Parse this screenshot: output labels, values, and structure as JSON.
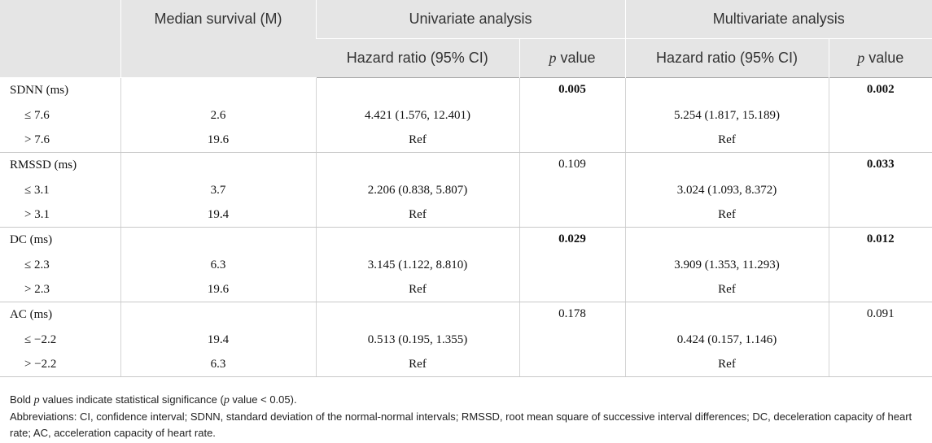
{
  "header": {
    "median_survival": "Median survival (M)",
    "univariate": "Univariate analysis",
    "multivariate": "Multivariate analysis",
    "hazard_ratio": "Hazard ratio (95% CI)",
    "p_letter": "p",
    "value_word": " value"
  },
  "groups": [
    {
      "label": "SDNN (ms)",
      "uni_p": "0.005",
      "uni_p_bold": true,
      "multi_p": "0.002",
      "multi_p_bold": true,
      "rows": [
        {
          "label": "≤ 7.6",
          "median": "2.6",
          "uni_hr": "4.421 (1.576, 12.401)",
          "multi_hr": "5.254 (1.817, 15.189)"
        },
        {
          "label": "> 7.6",
          "median": "19.6",
          "uni_hr": "Ref",
          "multi_hr": "Ref"
        }
      ]
    },
    {
      "label": "RMSSD (ms)",
      "uni_p": "0.109",
      "uni_p_bold": false,
      "multi_p": "0.033",
      "multi_p_bold": true,
      "rows": [
        {
          "label": "≤ 3.1",
          "median": "3.7",
          "uni_hr": "2.206 (0.838, 5.807)",
          "multi_hr": "3.024 (1.093, 8.372)"
        },
        {
          "label": "> 3.1",
          "median": "19.4",
          "uni_hr": "Ref",
          "multi_hr": "Ref"
        }
      ]
    },
    {
      "label": "DC (ms)",
      "uni_p": "0.029",
      "uni_p_bold": true,
      "multi_p": "0.012",
      "multi_p_bold": true,
      "rows": [
        {
          "label": "≤ 2.3",
          "median": "6.3",
          "uni_hr": "3.145 (1.122, 8.810)",
          "multi_hr": "3.909 (1.353, 11.293)"
        },
        {
          "label": "> 2.3",
          "median": "19.6",
          "uni_hr": "Ref",
          "multi_hr": "Ref"
        }
      ]
    },
    {
      "label": "AC (ms)",
      "uni_p": "0.178",
      "uni_p_bold": false,
      "multi_p": "0.091",
      "multi_p_bold": false,
      "rows": [
        {
          "label": "≤ −2.2",
          "median": "19.4",
          "uni_hr": "0.513 (0.195, 1.355)",
          "multi_hr": "0.424 (0.157, 1.146)"
        },
        {
          "label": "> −2.2",
          "median": "6.3",
          "uni_hr": "Ref",
          "multi_hr": "Ref"
        }
      ]
    }
  ],
  "footnotes": {
    "bold_pre": "Bold ",
    "bold_p": "p",
    "bold_mid": " values indicate statistical significance (",
    "bold_p2": "p",
    "bold_post": " value < 0.05).",
    "abbreviations": "Abbreviations: CI, confidence interval; SDNN, standard deviation of the normal-normal intervals; RMSSD, root mean square of successive interval differences; DC, deceleration capacity of heart rate; AC, acceleration capacity of heart rate."
  }
}
